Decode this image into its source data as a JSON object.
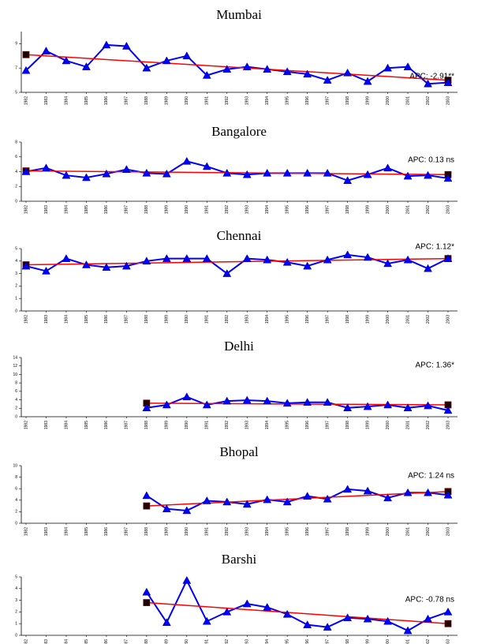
{
  "chart_data": [
    {
      "type": "line",
      "title": "Mumbai",
      "annotation": "APC: -2.91**",
      "x": [
        1982,
        1983,
        1984,
        1985,
        1986,
        1987,
        1988,
        1989,
        1990,
        1991,
        1992,
        1993,
        1994,
        1995,
        1996,
        1997,
        1998,
        1999,
        2000,
        2001,
        2002,
        2003
      ],
      "ylim": [
        5,
        10
      ],
      "yticks": [
        5,
        7,
        9
      ],
      "series": [
        {
          "color": "#0000ff",
          "values": [
            6.8,
            8.4,
            7.6,
            7.1,
            8.9,
            8.8,
            7.0,
            7.6,
            8.0,
            6.4,
            6.9,
            7.1,
            6.9,
            6.7,
            6.5,
            6.0,
            6.6,
            5.9,
            7.0,
            7.1,
            5.7,
            5.8
          ]
        },
        {
          "color": "#ff0000",
          "x": [
            1982,
            2003
          ],
          "values": [
            8.1,
            6.0
          ]
        }
      ]
    },
    {
      "type": "line",
      "title": "Bangalore",
      "annotation": "APC: 0.13 ns",
      "x": [
        1982,
        1983,
        1984,
        1985,
        1986,
        1987,
        1988,
        1989,
        1990,
        1991,
        1992,
        1993,
        1994,
        1995,
        1996,
        1997,
        1998,
        1999,
        2000,
        2001,
        2002,
        2003
      ],
      "ylim": [
        0,
        8
      ],
      "yticks": [
        0,
        2,
        4,
        6,
        8
      ],
      "series": [
        {
          "color": "#0000ff",
          "values": [
            4.0,
            4.5,
            3.5,
            3.2,
            3.7,
            4.3,
            3.8,
            3.7,
            5.4,
            4.7,
            3.8,
            3.6,
            3.8,
            3.8,
            3.8,
            3.8,
            2.8,
            3.6,
            4.5,
            3.4,
            3.5,
            3.1
          ]
        },
        {
          "color": "#ff0000",
          "x": [
            1982,
            2003
          ],
          "values": [
            4.1,
            3.6
          ]
        }
      ]
    },
    {
      "type": "line",
      "title": "Chennai",
      "annotation": "APC: 1.12*",
      "x": [
        1982,
        1983,
        1984,
        1985,
        1986,
        1987,
        1988,
        1989,
        1990,
        1991,
        1992,
        1993,
        1994,
        1995,
        1996,
        1997,
        1998,
        1999,
        2000,
        2001,
        2002,
        2003
      ],
      "ylim": [
        0,
        5
      ],
      "yticks": [
        0,
        1,
        2,
        3,
        4,
        5
      ],
      "series": [
        {
          "color": "#0000ff",
          "values": [
            3.6,
            3.2,
            4.2,
            3.7,
            3.5,
            3.6,
            4.0,
            4.2,
            4.2,
            4.2,
            3.0,
            4.2,
            4.1,
            3.9,
            3.6,
            4.1,
            4.5,
            4.3,
            3.8,
            4.1,
            3.4,
            4.2
          ]
        },
        {
          "color": "#ff0000",
          "x": [
            1982,
            2003
          ],
          "values": [
            3.7,
            4.2
          ]
        }
      ]
    },
    {
      "type": "line",
      "title": "Delhi",
      "annotation": "APC: 1.36*",
      "x": [
        1982,
        1983,
        1984,
        1985,
        1986,
        1987,
        1988,
        1989,
        1990,
        1991,
        1992,
        1993,
        1994,
        1995,
        1996,
        1997,
        1998,
        1999,
        2000,
        2001,
        2002,
        2003
      ],
      "ylim": [
        0,
        14
      ],
      "yticks": [
        0,
        2,
        4,
        6,
        8,
        10,
        12,
        14
      ],
      "series": [
        {
          "color": "#0000ff",
          "values": [
            null,
            null,
            null,
            null,
            null,
            null,
            2.1,
            2.8,
            4.7,
            2.8,
            3.7,
            3.9,
            3.7,
            3.2,
            3.4,
            3.4,
            2.1,
            2.4,
            2.8,
            2.1,
            2.6,
            1.5
          ]
        },
        {
          "color": "#ff0000",
          "x": [
            1988,
            2003
          ],
          "values": [
            3.2,
            2.8
          ]
        }
      ]
    },
    {
      "type": "line",
      "title": "Bhopal",
      "annotation": "APC: 1.24 ns",
      "x": [
        1982,
        1983,
        1984,
        1985,
        1986,
        1987,
        1988,
        1989,
        1990,
        1991,
        1992,
        1993,
        1994,
        1995,
        1996,
        1997,
        1998,
        1999,
        2000,
        2001,
        2002,
        2003
      ],
      "ylim": [
        0,
        10
      ],
      "yticks": [
        0,
        2,
        4,
        6,
        8,
        10
      ],
      "series": [
        {
          "color": "#0000ff",
          "values": [
            null,
            null,
            null,
            null,
            null,
            null,
            4.8,
            2.5,
            2.2,
            3.9,
            3.7,
            3.3,
            4.1,
            3.7,
            4.7,
            4.2,
            5.9,
            5.6,
            4.4,
            5.3,
            5.3,
            4.9
          ]
        },
        {
          "color": "#ff0000",
          "x": [
            1988,
            2003
          ],
          "values": [
            3.0,
            5.5
          ]
        }
      ]
    },
    {
      "type": "line",
      "title": "Barshi",
      "annotation": "APC: -0.78 ns",
      "x": [
        1982,
        1983,
        1984,
        1985,
        1986,
        1987,
        1988,
        1989,
        1990,
        1991,
        1992,
        1993,
        1994,
        1995,
        1996,
        1997,
        1998,
        1999,
        2000,
        2001,
        2002,
        2003
      ],
      "ylim": [
        0,
        5
      ],
      "yticks": [
        0,
        1,
        2,
        3,
        4,
        5
      ],
      "series": [
        {
          "color": "#0000ff",
          "values": [
            null,
            null,
            null,
            null,
            null,
            null,
            3.7,
            1.1,
            4.7,
            1.2,
            2.0,
            2.7,
            2.4,
            1.8,
            0.9,
            0.7,
            1.5,
            1.4,
            1.2,
            0.4,
            1.4,
            2.0
          ]
        },
        {
          "color": "#ff0000",
          "x": [
            1988,
            2003
          ],
          "values": [
            2.8,
            1.0
          ]
        }
      ]
    }
  ]
}
